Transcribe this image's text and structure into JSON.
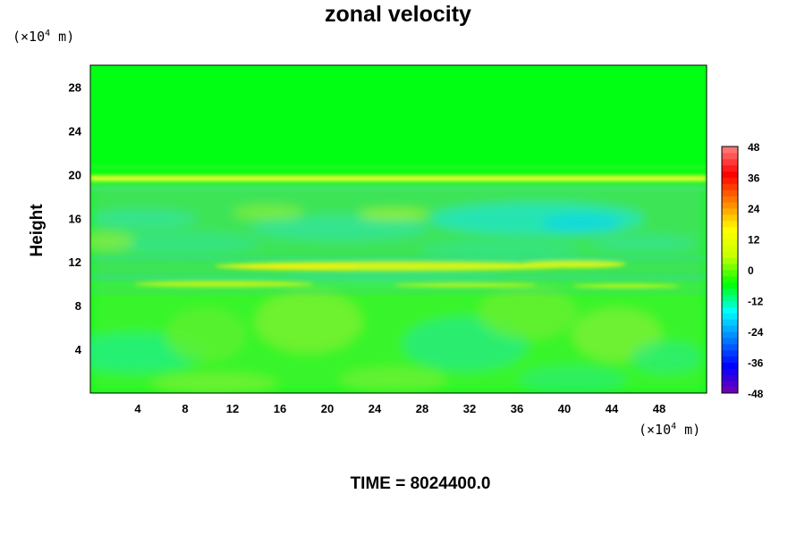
{
  "chart_data": {
    "type": "heatmap",
    "title": "zonal velocity",
    "ylabel": "Height",
    "x_unit_label": {
      "prefix": "(×10",
      "exp": "4",
      "suffix": " m)"
    },
    "y_unit_label": {
      "prefix": "(×10",
      "exp": "4",
      "suffix": " m)"
    },
    "xlim": [
      0,
      52
    ],
    "ylim": [
      0,
      30
    ],
    "x_ticks": [
      "4",
      "8",
      "12",
      "16",
      "20",
      "24",
      "28",
      "32",
      "36",
      "40",
      "44",
      "48"
    ],
    "y_ticks": [
      "4",
      "8",
      "12",
      "16",
      "20",
      "24",
      "28"
    ],
    "colorbar": {
      "min": -48,
      "max": 48,
      "labels": [
        "48",
        "36",
        "24",
        "12",
        "0",
        "-12",
        "-24",
        "-36",
        "-48"
      ],
      "colors": [
        "#7a00b0",
        "#0000ff",
        "#0080ff",
        "#00ffff",
        "#00ff00",
        "#c8ff00",
        "#ffff00",
        "#ff8000",
        "#ff0000",
        "#ff8080"
      ]
    },
    "field_description_bands": [
      {
        "y_from": 20.5,
        "y_to": 30,
        "value": 0
      },
      {
        "y_from": 19.3,
        "y_to": 20.3,
        "value": 10
      },
      {
        "y_from": 13,
        "y_to": 19,
        "value": -6
      },
      {
        "y_from": 11,
        "y_to": 12,
        "value": 10
      },
      {
        "y_from": 0,
        "y_to": 10,
        "value": 2
      }
    ]
  },
  "footer": {
    "time_text": "TIME = 8024400.0"
  }
}
